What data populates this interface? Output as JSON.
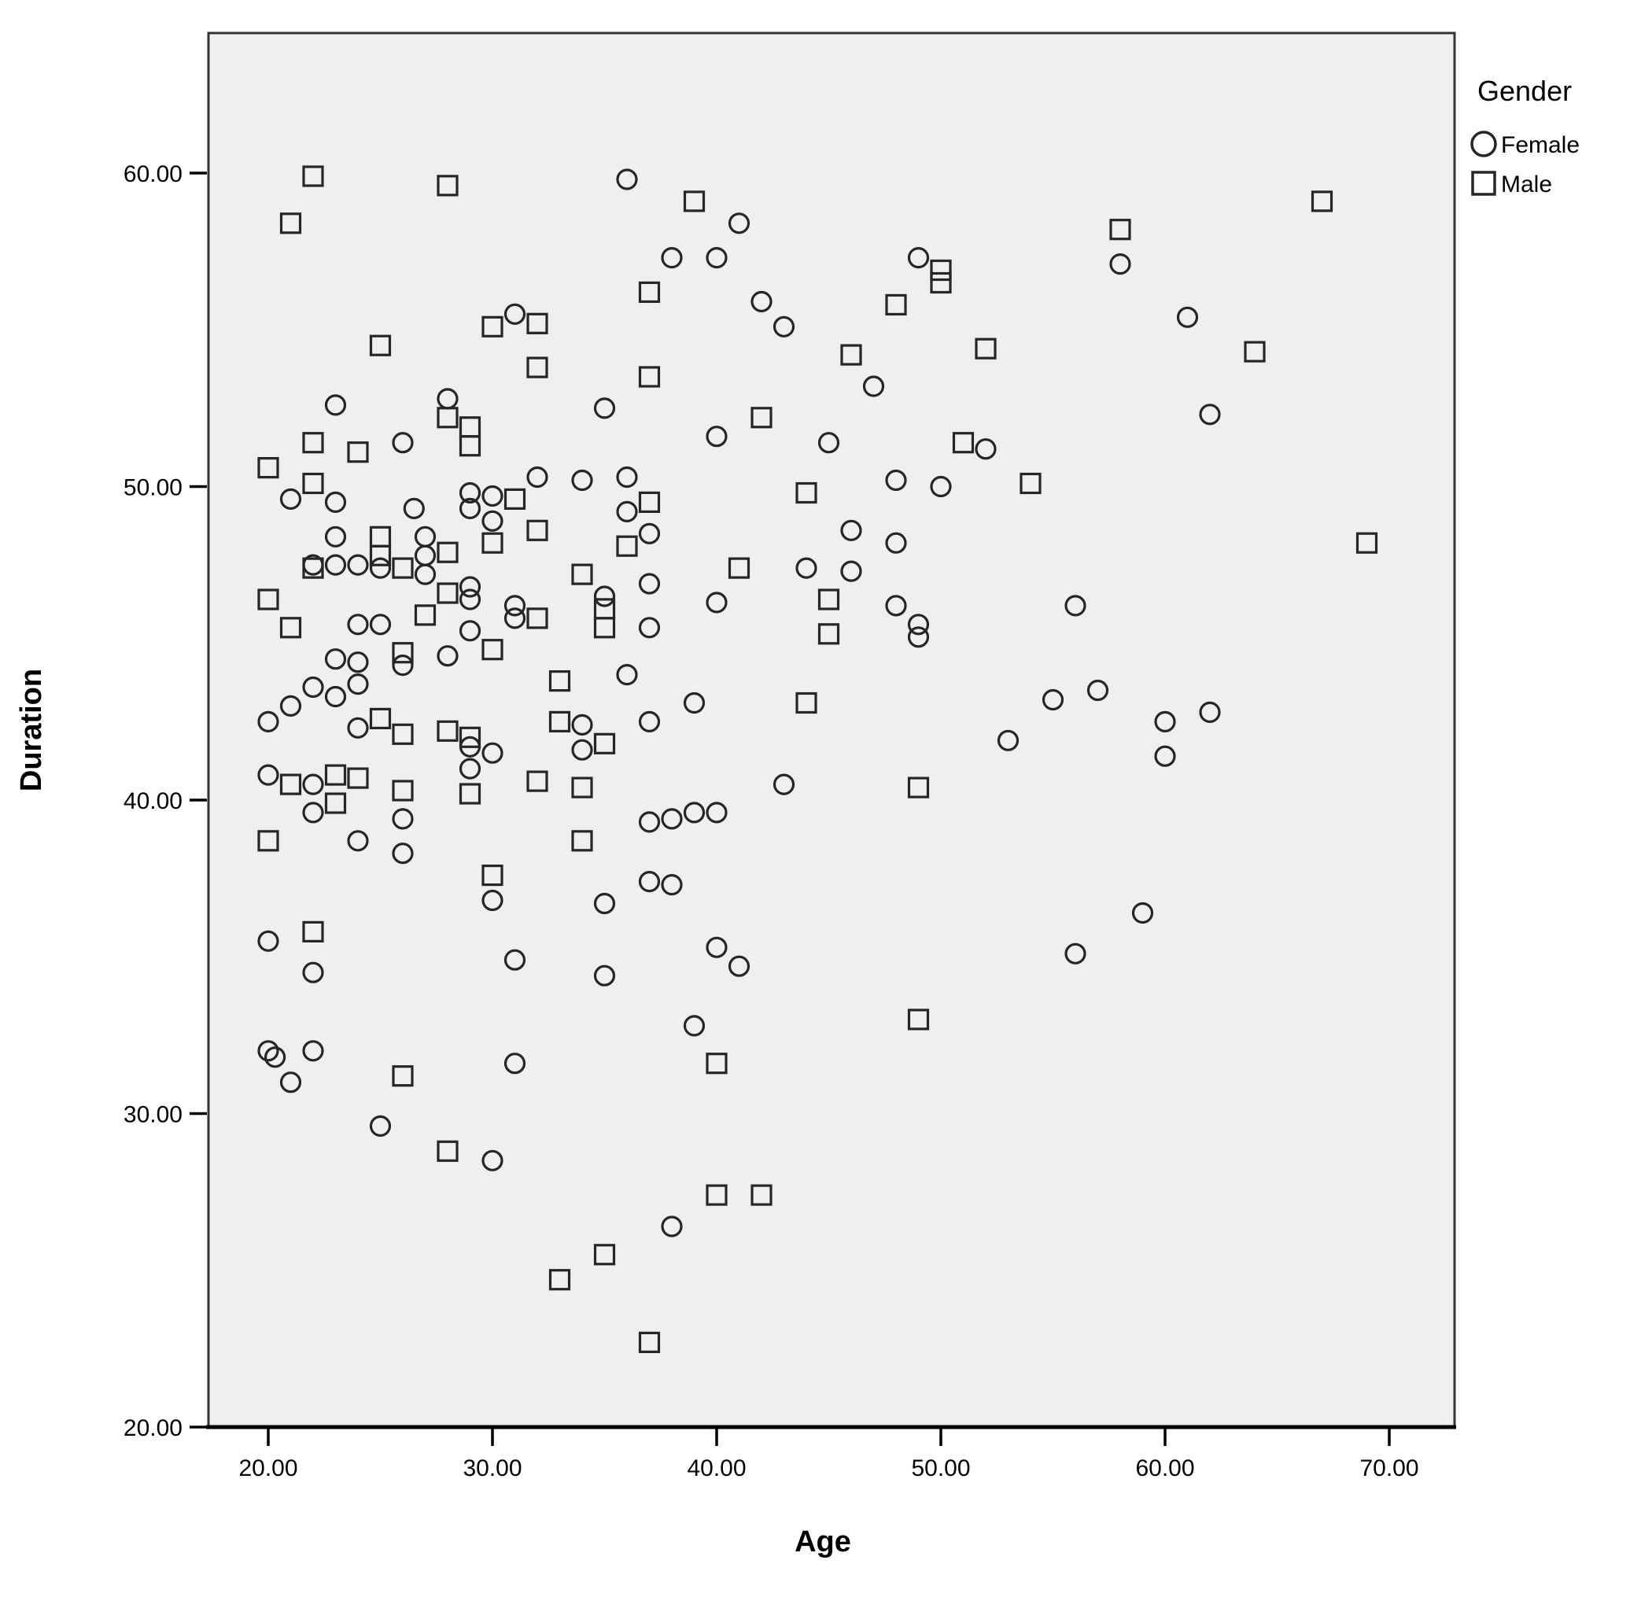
{
  "figure": {
    "background": "#ffffff",
    "colors": {
      "plot_background": "#f0efef",
      "frame": "#333333",
      "axis_line": "#000000",
      "marker": "#262626",
      "text": "#000000"
    }
  },
  "chart_data": {
    "type": "scatter",
    "title": "",
    "xlabel": "Age",
    "ylabel": "Duration",
    "xlim": [
      17.3,
      72.9
    ],
    "ylim": [
      20.0,
      64.5
    ],
    "grid": false,
    "x_ticks": [
      20,
      30,
      40,
      50,
      60,
      70
    ],
    "x_tick_labels": [
      "20.00",
      "30.00",
      "40.00",
      "50.00",
      "60.00",
      "70.00"
    ],
    "y_ticks": [
      20,
      30,
      40,
      50,
      60
    ],
    "y_tick_labels": [
      "20.00",
      "30.00",
      "40.00",
      "50.00",
      "60.00"
    ],
    "legend": {
      "title": "Gender",
      "position": "top-right-outside",
      "entries": [
        {
          "label": "Female",
          "marker": "circle"
        },
        {
          "label": "Male",
          "marker": "square"
        }
      ]
    },
    "series": [
      {
        "name": "Female",
        "marker": "circle",
        "points": [
          [
            36,
            59.8
          ],
          [
            41,
            58.4
          ],
          [
            38,
            57.3
          ],
          [
            40,
            57.3
          ],
          [
            49,
            57.3
          ],
          [
            58,
            57.1
          ],
          [
            42,
            55.9
          ],
          [
            43,
            55.1
          ],
          [
            31,
            55.5
          ],
          [
            61,
            55.4
          ],
          [
            62,
            52.3
          ],
          [
            35,
            52.5
          ],
          [
            23,
            52.6
          ],
          [
            28,
            52.8
          ],
          [
            26,
            51.4
          ],
          [
            40,
            51.6
          ],
          [
            45,
            51.4
          ],
          [
            52,
            51.2
          ],
          [
            47,
            53.2
          ],
          [
            48,
            50.2
          ],
          [
            50,
            50.0
          ],
          [
            32,
            50.3
          ],
          [
            34,
            50.2
          ],
          [
            36,
            50.3
          ],
          [
            29,
            49.8
          ],
          [
            30,
            49.7
          ],
          [
            21,
            49.6
          ],
          [
            23,
            49.5
          ],
          [
            26.5,
            49.3
          ],
          [
            29,
            49.3
          ],
          [
            30,
            48.9
          ],
          [
            36,
            49.2
          ],
          [
            37,
            48.5
          ],
          [
            23,
            48.4
          ],
          [
            27,
            48.4
          ],
          [
            46,
            48.6
          ],
          [
            48,
            48.2
          ],
          [
            22,
            47.5
          ],
          [
            23,
            47.5
          ],
          [
            24,
            47.5
          ],
          [
            25,
            47.4
          ],
          [
            27,
            47.8
          ],
          [
            27,
            47.2
          ],
          [
            46,
            47.3
          ],
          [
            44,
            47.4
          ],
          [
            37,
            46.9
          ],
          [
            40,
            46.3
          ],
          [
            31,
            46.2
          ],
          [
            48,
            46.2
          ],
          [
            56,
            46.2
          ],
          [
            29,
            46.8
          ],
          [
            29,
            46.4
          ],
          [
            35,
            46.5
          ],
          [
            24,
            45.6
          ],
          [
            25,
            45.6
          ],
          [
            49,
            45.6
          ],
          [
            49,
            45.2
          ],
          [
            37,
            45.5
          ],
          [
            29,
            45.4
          ],
          [
            31,
            45.8
          ],
          [
            23,
            44.5
          ],
          [
            24,
            44.4
          ],
          [
            26,
            44.3
          ],
          [
            28,
            44.6
          ],
          [
            36,
            44.0
          ],
          [
            22,
            43.6
          ],
          [
            24,
            43.7
          ],
          [
            23,
            43.3
          ],
          [
            21,
            43.0
          ],
          [
            39,
            43.1
          ],
          [
            20,
            42.5
          ],
          [
            24,
            42.3
          ],
          [
            34,
            42.4
          ],
          [
            37,
            42.5
          ],
          [
            55,
            43.2
          ],
          [
            57,
            43.5
          ],
          [
            53,
            41.9
          ],
          [
            60,
            42.5
          ],
          [
            62,
            42.8
          ],
          [
            34,
            41.6
          ],
          [
            43,
            40.5
          ],
          [
            29,
            41.7
          ],
          [
            29,
            41.0
          ],
          [
            30,
            41.5
          ],
          [
            60,
            41.4
          ],
          [
            20,
            40.8
          ],
          [
            22,
            40.5
          ],
          [
            22,
            39.6
          ],
          [
            26,
            39.4
          ],
          [
            24,
            38.7
          ],
          [
            26,
            38.3
          ],
          [
            37,
            39.3
          ],
          [
            38,
            39.4
          ],
          [
            39,
            39.6
          ],
          [
            40,
            39.6
          ],
          [
            37,
            37.4
          ],
          [
            38,
            37.3
          ],
          [
            30,
            36.8
          ],
          [
            35,
            36.7
          ],
          [
            59,
            36.4
          ],
          [
            56,
            35.1
          ],
          [
            20,
            35.5
          ],
          [
            22,
            34.5
          ],
          [
            35,
            34.4
          ],
          [
            40,
            35.3
          ],
          [
            41,
            34.7
          ],
          [
            31,
            34.9
          ],
          [
            20,
            32.0
          ],
          [
            20.3,
            31.8
          ],
          [
            22,
            32.0
          ],
          [
            21,
            31.0
          ],
          [
            39,
            32.8
          ],
          [
            31,
            31.6
          ],
          [
            25,
            29.6
          ],
          [
            30,
            28.5
          ],
          [
            38,
            26.4
          ]
        ]
      },
      {
        "name": "Male",
        "marker": "square",
        "points": [
          [
            22,
            59.9
          ],
          [
            28,
            59.6
          ],
          [
            39,
            59.1
          ],
          [
            21,
            58.4
          ],
          [
            67,
            59.1
          ],
          [
            58,
            58.2
          ],
          [
            50,
            56.9
          ],
          [
            50,
            56.5
          ],
          [
            37,
            56.2
          ],
          [
            48,
            55.8
          ],
          [
            25,
            54.5
          ],
          [
            30,
            55.1
          ],
          [
            32,
            55.2
          ],
          [
            46,
            54.2
          ],
          [
            52,
            54.4
          ],
          [
            64,
            54.3
          ],
          [
            32,
            53.8
          ],
          [
            37,
            53.5
          ],
          [
            28,
            52.2
          ],
          [
            42,
            52.2
          ],
          [
            29,
            51.9
          ],
          [
            29,
            51.3
          ],
          [
            22,
            51.4
          ],
          [
            24,
            51.1
          ],
          [
            51,
            51.4
          ],
          [
            20,
            50.6
          ],
          [
            22,
            50.1
          ],
          [
            54,
            50.1
          ],
          [
            31,
            49.6
          ],
          [
            44,
            49.8
          ],
          [
            37,
            49.5
          ],
          [
            36,
            48.1
          ],
          [
            32,
            48.6
          ],
          [
            30,
            48.2
          ],
          [
            25,
            48.4
          ],
          [
            69,
            48.2
          ],
          [
            25,
            47.8
          ],
          [
            22,
            47.4
          ],
          [
            26,
            47.4
          ],
          [
            28,
            47.9
          ],
          [
            34,
            47.2
          ],
          [
            41,
            47.4
          ],
          [
            35,
            46.1
          ],
          [
            20,
            46.4
          ],
          [
            28,
            46.6
          ],
          [
            45,
            46.4
          ],
          [
            27,
            45.9
          ],
          [
            32,
            45.8
          ],
          [
            21,
            45.5
          ],
          [
            35,
            45.5
          ],
          [
            26,
            44.7
          ],
          [
            30,
            44.8
          ],
          [
            45,
            45.3
          ],
          [
            33,
            43.8
          ],
          [
            44,
            43.1
          ],
          [
            33,
            42.5
          ],
          [
            35,
            41.8
          ],
          [
            25,
            42.6
          ],
          [
            26,
            42.1
          ],
          [
            28,
            42.2
          ],
          [
            29,
            42.0
          ],
          [
            32,
            40.6
          ],
          [
            34,
            40.4
          ],
          [
            21,
            40.5
          ],
          [
            23,
            40.8
          ],
          [
            24,
            40.7
          ],
          [
            23,
            39.9
          ],
          [
            26,
            40.3
          ],
          [
            29,
            40.2
          ],
          [
            49,
            40.4
          ],
          [
            20,
            38.7
          ],
          [
            34,
            38.7
          ],
          [
            30,
            37.6
          ],
          [
            22,
            35.8
          ],
          [
            49,
            33.0
          ],
          [
            26,
            31.2
          ],
          [
            40,
            31.6
          ],
          [
            28,
            28.8
          ],
          [
            40,
            27.4
          ],
          [
            42,
            27.4
          ],
          [
            35,
            25.5
          ],
          [
            33,
            24.7
          ],
          [
            37,
            22.7
          ]
        ]
      }
    ]
  }
}
